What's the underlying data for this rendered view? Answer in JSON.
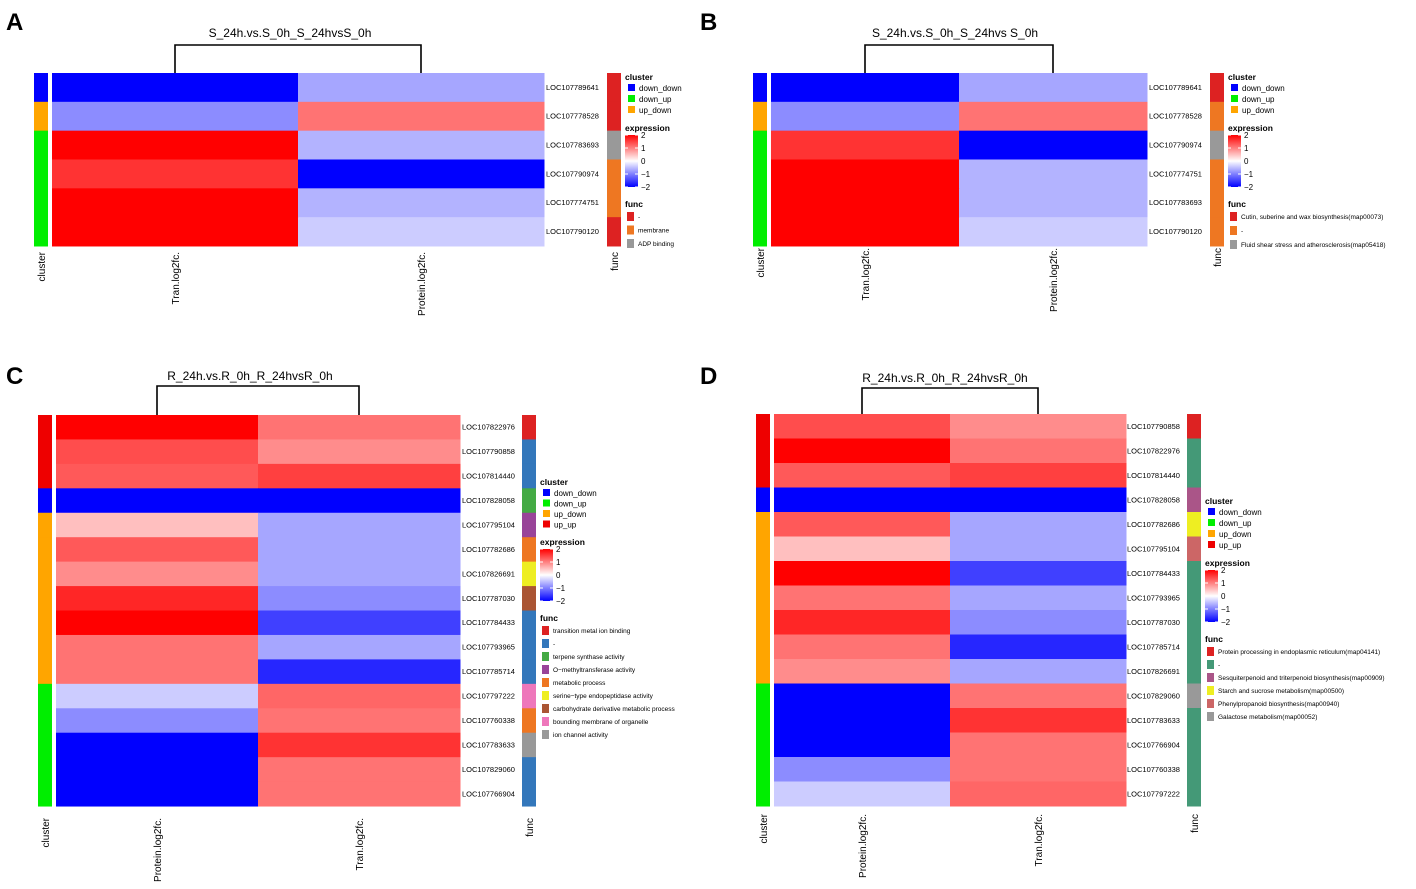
{
  "panel_letters": [
    "A",
    "B",
    "C",
    "D"
  ],
  "cluster_colors": {
    "down_down": "#0000ff",
    "down_up": "#00ee00",
    "up_down": "#ffa500",
    "up_up": "#ee0000"
  },
  "expression_scale": {
    "min": -2,
    "max": 2,
    "ticks": [
      "2",
      "1",
      "0",
      "−1",
      "−2"
    ],
    "low_color": "#0000ff",
    "mid_color": "#ffffff",
    "high_color": "#ff0000"
  },
  "labels": {
    "cluster_track": "cluster",
    "func_track": "func",
    "cluster_legend_title": "cluster",
    "expression_legend_title": "expression",
    "func_legend_title": "func"
  },
  "chart_data": [
    {
      "type": "heatmap",
      "panel": "A",
      "title": "S_24h.vs.S_0h_S_24hvsS_0h",
      "columns": [
        "Tran.log2fc.",
        "Protein.log2fc."
      ],
      "rows": [
        "LOC107789641",
        "LOC107778528",
        "LOC107783693",
        "LOC107790974",
        "LOC107774751",
        "LOC107790120"
      ],
      "values": [
        [
          -2,
          -0.7
        ],
        [
          -0.9,
          1.1
        ],
        [
          2,
          -0.6
        ],
        [
          1.6,
          -2
        ],
        [
          2,
          -0.6
        ],
        [
          2,
          -0.4
        ]
      ],
      "cluster": [
        "down_down",
        "up_down",
        "down_up",
        "down_up",
        "down_up",
        "down_up"
      ],
      "cluster_legend": [
        "down_down",
        "down_up",
        "up_down"
      ],
      "func": [
        0,
        0,
        2,
        1,
        1,
        0
      ],
      "func_legend": [
        {
          "label": "-",
          "color": "#dd2222"
        },
        {
          "label": "membrane",
          "color": "#ee7722"
        },
        {
          "label": "ADP binding",
          "color": "#999999"
        }
      ]
    },
    {
      "type": "heatmap",
      "panel": "B",
      "title": "S_24h.vs.S_0h_S_24hvs S_0h",
      "columns": [
        "Tran.log2fc.",
        "Protein.log2fc."
      ],
      "rows": [
        "LOC107789641",
        "LOC107778528",
        "LOC107790974",
        "LOC107774751",
        "LOC107783693",
        "LOC107790120"
      ],
      "values": [
        [
          -2,
          -0.7
        ],
        [
          -0.9,
          1.1
        ],
        [
          1.6,
          -2
        ],
        [
          2,
          -0.6
        ],
        [
          2,
          -0.6
        ],
        [
          2,
          -0.4
        ]
      ],
      "cluster": [
        "down_down",
        "up_down",
        "down_up",
        "down_up",
        "down_up",
        "down_up"
      ],
      "cluster_legend": [
        "down_down",
        "down_up",
        "up_down"
      ],
      "func": [
        0,
        1,
        2,
        1,
        1,
        1
      ],
      "func_legend": [
        {
          "label": "Cutin, suberine and wax biosynthesis(map00073)",
          "color": "#dd2222"
        },
        {
          "label": "-",
          "color": "#ee7722"
        },
        {
          "label": "Fluid shear stress and atherosclerosis(map05418)",
          "color": "#999999"
        }
      ]
    },
    {
      "type": "heatmap",
      "panel": "C",
      "title": "R_24h.vs.R_0h_R_24hvsR_0h",
      "columns": [
        "Protein.log2fc.",
        "Tran.log2fc."
      ],
      "rows": [
        "LOC107822976",
        "LOC107790858",
        "LOC107814440",
        "LOC107828058",
        "LOC107795104",
        "LOC107782686",
        "LOC107826691",
        "LOC107787030",
        "LOC107784433",
        "LOC107793965",
        "LOC107785714",
        "LOC107797222",
        "LOC107760338",
        "LOC107783633",
        "LOC107829060",
        "LOC107766904"
      ],
      "values": [
        [
          2,
          1.1
        ],
        [
          1.4,
          0.9
        ],
        [
          1.3,
          1.5
        ],
        [
          -2,
          -2
        ],
        [
          0.5,
          -0.7
        ],
        [
          1.3,
          -0.7
        ],
        [
          0.9,
          -0.7
        ],
        [
          1.7,
          -0.9
        ],
        [
          2,
          -1.5
        ],
        [
          1.1,
          -0.7
        ],
        [
          1.1,
          -1.7
        ],
        [
          -0.4,
          1.2
        ],
        [
          -0.9,
          1.1
        ],
        [
          -2,
          1.6
        ],
        [
          -2,
          1.1
        ],
        [
          -2,
          1.1
        ]
      ],
      "cluster": [
        "up_up",
        "up_up",
        "up_up",
        "down_down",
        "up_down",
        "up_down",
        "up_down",
        "up_down",
        "up_down",
        "up_down",
        "up_down",
        "down_up",
        "down_up",
        "down_up",
        "down_up",
        "down_up"
      ],
      "cluster_legend": [
        "down_down",
        "down_up",
        "up_down",
        "up_up"
      ],
      "func": [
        0,
        1,
        1,
        2,
        3,
        4,
        5,
        6,
        1,
        1,
        1,
        7,
        4,
        8,
        1,
        1
      ],
      "func_legend": [
        {
          "label": "transition metal ion binding",
          "color": "#dd2222"
        },
        {
          "label": "-",
          "color": "#3377bb"
        },
        {
          "label": "terpene synthase activity",
          "color": "#44aa44"
        },
        {
          "label": "O−methyltransferase activity",
          "color": "#994499"
        },
        {
          "label": "metabolic process",
          "color": "#ee7722"
        },
        {
          "label": "serine−type endopeptidase activity",
          "color": "#eeee22"
        },
        {
          "label": "carbohydrate derivative metabolic process",
          "color": "#aa5533"
        },
        {
          "label": "bounding membrane of organelle",
          "color": "#ee77bb"
        },
        {
          "label": "ion channel activity",
          "color": "#999999"
        }
      ]
    },
    {
      "type": "heatmap",
      "panel": "D",
      "title": "R_24h.vs.R_0h_R_24hvsR_0h",
      "columns": [
        "Protein.log2fc.",
        "Tran.log2fc."
      ],
      "rows": [
        "LOC107790858",
        "LOC107822976",
        "LOC107814440",
        "LOC107828058",
        "LOC107782686",
        "LOC107795104",
        "LOC107784433",
        "LOC107793965",
        "LOC107787030",
        "LOC107785714",
        "LOC107826691",
        "LOC107829060",
        "LOC107783633",
        "LOC107766904",
        "LOC107760338",
        "LOC107797222"
      ],
      "values": [
        [
          1.4,
          0.9
        ],
        [
          2,
          1.1
        ],
        [
          1.3,
          1.5
        ],
        [
          -2,
          -2
        ],
        [
          1.3,
          -0.7
        ],
        [
          0.5,
          -0.7
        ],
        [
          2,
          -1.5
        ],
        [
          1.1,
          -0.7
        ],
        [
          1.7,
          -0.9
        ],
        [
          1.1,
          -1.7
        ],
        [
          0.9,
          -0.7
        ],
        [
          -2,
          1.1
        ],
        [
          -2,
          1.6
        ],
        [
          -2,
          1.1
        ],
        [
          -0.9,
          1.1
        ],
        [
          -0.4,
          1.2
        ]
      ],
      "cluster": [
        "up_up",
        "up_up",
        "up_up",
        "down_down",
        "up_down",
        "up_down",
        "up_down",
        "up_down",
        "up_down",
        "up_down",
        "up_down",
        "down_up",
        "down_up",
        "down_up",
        "down_up",
        "down_up"
      ],
      "cluster_legend": [
        "down_down",
        "down_up",
        "up_down",
        "up_up"
      ],
      "func": [
        0,
        1,
        1,
        2,
        3,
        4,
        1,
        1,
        1,
        1,
        1,
        5,
        1,
        1,
        1,
        1
      ],
      "func_legend": [
        {
          "label": "Protein processing in endoplasmic reticulum(map04141)",
          "color": "#dd2222"
        },
        {
          "label": "-",
          "color": "#449977"
        },
        {
          "label": "Sesquiterpenoid and triterpenoid biosynthesis(map00909)",
          "color": "#aa5588"
        },
        {
          "label": "Starch and sucrose metabolism(map00500)",
          "color": "#eeee22"
        },
        {
          "label": "Phenylpropanoid biosynthesis(map00940)",
          "color": "#cc6666"
        },
        {
          "label": "Galactose metabolism(map00052)",
          "color": "#999999"
        }
      ]
    }
  ]
}
